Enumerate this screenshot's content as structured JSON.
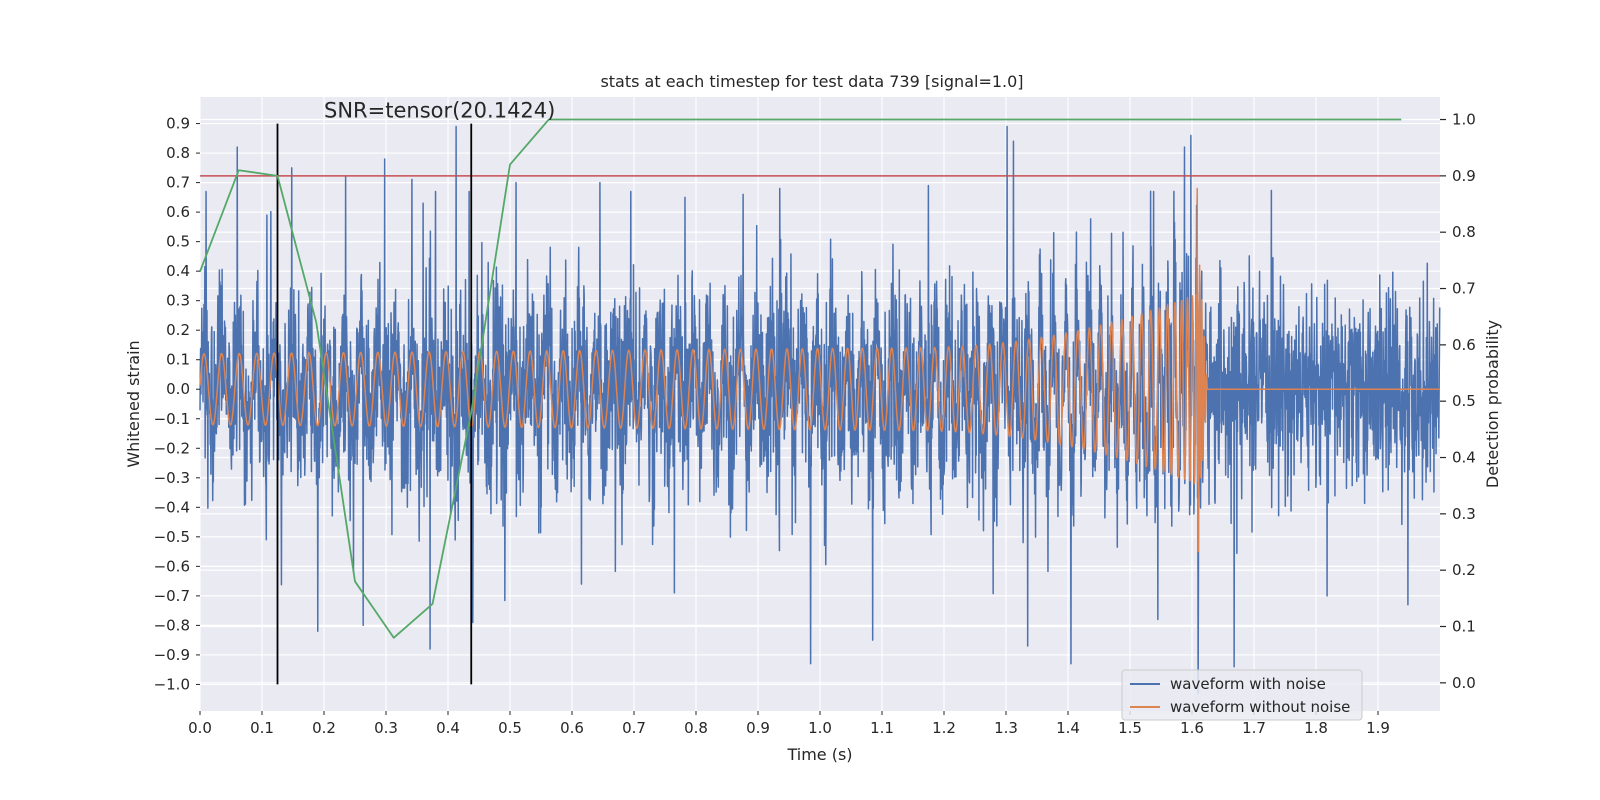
{
  "chart_data": {
    "type": "line",
    "title": "stats at each timestep for test data 739 [signal=1.0]",
    "xlabel": "Time (s)",
    "ylabel_left": "Whitened strain",
    "ylabel_right": "Detection probability",
    "xlim": [
      0.0,
      2.0
    ],
    "ylim_left": [
      -1.09,
      0.99
    ],
    "ylim_right": [
      -0.05,
      1.04
    ],
    "x_ticks": [
      0.0,
      0.1,
      0.2,
      0.3,
      0.4,
      0.5,
      0.6,
      0.7,
      0.8,
      0.9,
      1.0,
      1.1,
      1.2,
      1.3,
      1.4,
      1.5,
      1.6,
      1.7,
      1.8,
      1.9
    ],
    "x_tick_labels": [
      "0.0",
      "0.1",
      "0.2",
      "0.3",
      "0.4",
      "0.5",
      "0.6",
      "0.7",
      "0.8",
      "0.9",
      "1.0",
      "1.1",
      "1.2",
      "1.3",
      "1.4",
      "1.5",
      "1.6",
      "1.7",
      "1.8",
      "1.9"
    ],
    "y_left_ticks": [
      0.9,
      0.8,
      0.7,
      0.6,
      0.5,
      0.4,
      0.3,
      0.2,
      0.1,
      0.0,
      -0.1,
      -0.2,
      -0.3,
      -0.4,
      -0.5,
      -0.6,
      -0.7,
      -0.8,
      -0.9,
      -1.0
    ],
    "y_left_tick_labels": [
      "0.9",
      "0.8",
      "0.7",
      "0.6",
      "0.5",
      "0.4",
      "0.3",
      "0.2",
      "0.1",
      "0.0",
      "−0.1",
      "−0.2",
      "−0.3",
      "−0.4",
      "−0.5",
      "−0.6",
      "−0.7",
      "−0.8",
      "−0.9",
      "−1.0"
    ],
    "y_right_ticks": [
      1.0,
      0.9,
      0.8,
      0.7,
      0.6,
      0.5,
      0.4,
      0.3,
      0.2,
      0.1,
      0.0
    ],
    "y_right_tick_labels": [
      "1.0",
      "0.9",
      "0.8",
      "0.7",
      "0.6",
      "0.5",
      "0.4",
      "0.3",
      "0.2",
      "0.1",
      "0.0"
    ],
    "annotation": "SNR=tensor(20.1424)",
    "annotation_position": {
      "x": 0.2,
      "y": 0.92
    },
    "vertical_lines": [
      0.125,
      0.4375
    ],
    "vertical_lines_range": [
      -1.0,
      0.9
    ],
    "threshold": {
      "value": 0.9,
      "axis": "right"
    },
    "legend": {
      "placement": "lower-right",
      "entries": [
        {
          "label": "waveform with noise",
          "color": "#4c72b0"
        },
        {
          "label": "waveform without noise",
          "color": "#dd8452"
        }
      ]
    },
    "series": [
      {
        "name": "waveform with noise",
        "color": "#4c72b0",
        "axis": "left",
        "kind": "noise",
        "num_samples": 4096,
        "noise_std": 0.16,
        "peaks": [
          {
            "x": 0.01,
            "y": 0.67
          },
          {
            "x": 0.06,
            "y": 0.82
          },
          {
            "x": 0.108,
            "y": 0.59
          },
          {
            "x": 0.148,
            "y": 0.75
          },
          {
            "x": 0.235,
            "y": 0.72
          },
          {
            "x": 0.298,
            "y": 0.78
          },
          {
            "x": 0.36,
            "y": 0.63
          },
          {
            "x": 0.38,
            "y": 0.67
          },
          {
            "x": 0.413,
            "y": 0.89
          },
          {
            "x": 0.434,
            "y": 0.67
          },
          {
            "x": 0.51,
            "y": 0.7
          },
          {
            "x": 0.645,
            "y": 0.7
          },
          {
            "x": 0.695,
            "y": 0.67
          },
          {
            "x": 0.782,
            "y": 0.65
          },
          {
            "x": 0.876,
            "y": 0.66
          },
          {
            "x": 0.935,
            "y": 0.68
          },
          {
            "x": 1.175,
            "y": 0.69
          },
          {
            "x": 1.302,
            "y": 0.89
          },
          {
            "x": 1.312,
            "y": 0.84
          },
          {
            "x": 1.405,
            "y": 0.69
          },
          {
            "x": 1.538,
            "y": 0.67
          },
          {
            "x": 1.588,
            "y": 0.82
          },
          {
            "x": 1.598,
            "y": 0.86
          },
          {
            "x": 0.107,
            "y": -0.51
          },
          {
            "x": 0.19,
            "y": -0.82
          },
          {
            "x": 0.263,
            "y": -0.8
          },
          {
            "x": 0.371,
            "y": -0.88
          },
          {
            "x": 0.44,
            "y": -0.79
          },
          {
            "x": 0.615,
            "y": -0.66
          },
          {
            "x": 0.765,
            "y": -0.69
          },
          {
            "x": 0.985,
            "y": -0.93
          },
          {
            "x": 1.085,
            "y": -0.85
          },
          {
            "x": 1.335,
            "y": -0.87
          },
          {
            "x": 1.405,
            "y": -0.93
          },
          {
            "x": 1.545,
            "y": -0.78
          },
          {
            "x": 1.61,
            "y": -1.03
          },
          {
            "x": 1.668,
            "y": -0.94
          },
          {
            "x": 1.818,
            "y": -0.7
          },
          {
            "x": 1.948,
            "y": -0.73
          }
        ]
      },
      {
        "name": "waveform without noise",
        "color": "#dd8452",
        "axis": "left",
        "kind": "chirp",
        "start": 0.0,
        "merger": 1.615,
        "ringdown_end": 1.625,
        "amplitude_start": 0.12,
        "amplitude_mid": 0.14,
        "amplitude_late": 0.33,
        "amplitude_peak": 0.68,
        "trough_peak": -0.55,
        "frequency_start_hz": 27,
        "frequency_merger_hz": 250
      },
      {
        "name": "detection probability",
        "color": "#55a868",
        "axis": "right",
        "x": [
          0.0,
          0.0625,
          0.125,
          0.1875,
          0.25,
          0.3125,
          0.375,
          0.4375,
          0.5,
          0.5625,
          0.625,
          0.6875,
          0.75,
          0.8125,
          0.875,
          0.9375,
          1.0,
          1.0625,
          1.125,
          1.1875,
          1.25,
          1.3125,
          1.375,
          1.4375,
          1.5,
          1.5625,
          1.625,
          1.6875,
          1.75,
          1.8125,
          1.875,
          1.9375
        ],
        "y": [
          0.73,
          0.91,
          0.9,
          0.64,
          0.18,
          0.08,
          0.14,
          0.48,
          0.92,
          1.0,
          1.0,
          1.0,
          1.0,
          1.0,
          1.0,
          1.0,
          1.0,
          1.0,
          1.0,
          1.0,
          1.0,
          1.0,
          1.0,
          1.0,
          1.0,
          1.0,
          1.0,
          1.0,
          1.0,
          1.0,
          1.0,
          1.0
        ]
      }
    ],
    "colors": {
      "plot_background": "#eaeaf2",
      "grid": "#ffffff",
      "noise": "#4c72b0",
      "clean": "#dd8452",
      "probability": "#55a868",
      "threshold": "#c44e52",
      "marker": "#000000"
    }
  }
}
